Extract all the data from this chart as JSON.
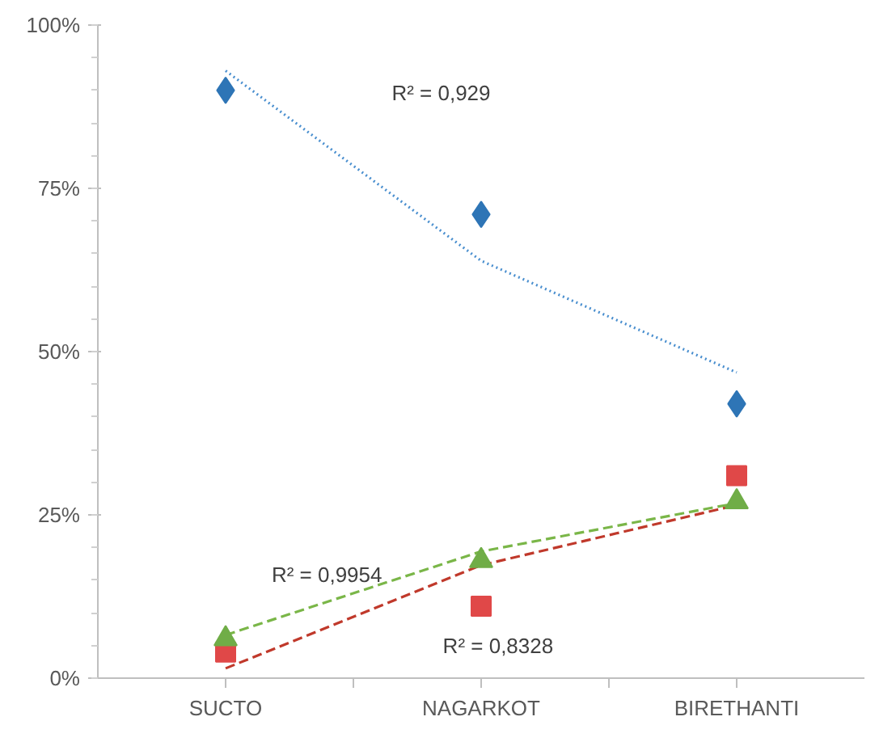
{
  "chart_data": {
    "type": "scatter",
    "categories": [
      "SUCTO",
      "NAGARKOT",
      "BIRETHANTI"
    ],
    "ylim": [
      0,
      100
    ],
    "yticks": [
      {
        "value": 0,
        "label": "0%"
      },
      {
        "value": 25,
        "label": "25%"
      },
      {
        "value": 50,
        "label": "50%"
      },
      {
        "value": 75,
        "label": "75%"
      },
      {
        "value": 100,
        "label": "100%"
      }
    ],
    "grid": false,
    "series": [
      {
        "marker": "diamond",
        "color": "#2e75b6",
        "values": [
          90,
          71,
          42
        ]
      },
      {
        "marker": "square",
        "color": "#e04848",
        "values": [
          4,
          11,
          31
        ]
      },
      {
        "marker": "triangle",
        "color": "#70ad47",
        "values": [
          6,
          18,
          27
        ]
      },
      {
        "type": "line",
        "line_style": "dotted",
        "color": "#4a8fcf",
        "values": [
          93,
          63.9,
          46.8
        ]
      },
      {
        "type": "line",
        "line_style": "dashed",
        "color": "#c0392b",
        "values": [
          1.5,
          17.3,
          26.5
        ]
      },
      {
        "type": "line",
        "line_style": "dashed",
        "color": "#7ab648",
        "values": [
          6.6,
          19.4,
          26.8
        ]
      }
    ],
    "annotations": [
      "R² = 0,929",
      "R² = 0,9954",
      "R² = 0,8328"
    ]
  }
}
